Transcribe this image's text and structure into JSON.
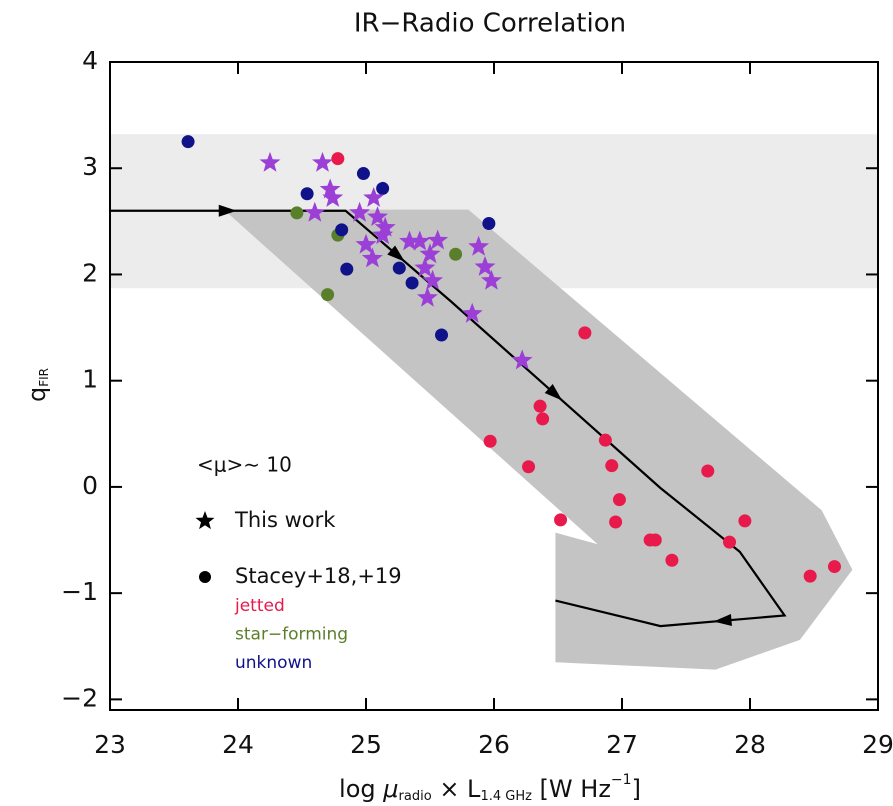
{
  "chart_data": {
    "type": "scatter",
    "title": "IR−Radio Correlation",
    "xlabel": [
      "log ",
      "μ",
      "radio",
      " × L",
      "1.4 GHz",
      " [W Hz",
      "−1",
      "]"
    ],
    "ylabel": [
      "q",
      "FIR"
    ],
    "xlim": [
      23,
      29
    ],
    "ylim": [
      -2.1,
      4
    ],
    "xticks": [
      23,
      24,
      25,
      26,
      27,
      28,
      29
    ],
    "yticks": [
      {
        "value": -2,
        "label": "−2"
      },
      {
        "value": -1,
        "label": "−1"
      },
      0,
      1,
      2,
      3,
      4
    ],
    "shaded_band": {
      "y": [
        1.87,
        3.32
      ],
      "color": "#ececec"
    },
    "track_region": {
      "color": "#c4c4c4",
      "x": [
        23.89,
        25.8,
        28.56,
        28.8,
        28.39,
        27.73,
        26.48,
        26.48,
        26.81
      ],
      "y": [
        2.61,
        2.61,
        -0.22,
        -0.78,
        -1.44,
        -1.72,
        -1.65,
        -0.43,
        -0.54
      ]
    },
    "track": {
      "x": [
        23.0,
        24.84,
        25.66,
        27.3,
        27.92,
        28.27,
        27.3,
        26.48
      ],
      "y": [
        2.6,
        2.6,
        1.75,
        -0.01,
        -0.61,
        -1.21,
        -1.31,
        -1.07
      ]
    },
    "annotations": [
      "<μ>∼ 10",
      "Stacey+18,+19"
    ],
    "series": [
      {
        "name": "This work",
        "color": "#9b3fd6",
        "marker": "star",
        "x": [
          24.25,
          24.66,
          24.72,
          24.74,
          24.6,
          24.95,
          25.06,
          25.09,
          25.15,
          25.13,
          25.0,
          25.05,
          25.34,
          25.42,
          25.5,
          25.56,
          25.46,
          25.52,
          25.48,
          25.83,
          25.88,
          25.93,
          25.98,
          26.22
        ],
        "values": [
          3.05,
          3.05,
          2.8,
          2.72,
          2.58,
          2.58,
          2.72,
          2.54,
          2.44,
          2.37,
          2.28,
          2.15,
          2.31,
          2.31,
          2.19,
          2.32,
          2.06,
          1.94,
          1.78,
          1.63,
          2.26,
          2.07,
          1.94,
          1.19
        ]
      },
      {
        "name": "jetted",
        "color": "#e8194b",
        "marker": "circle",
        "x": [
          24.78,
          26.71,
          25.97,
          26.27,
          26.36,
          26.38,
          26.87,
          26.92,
          26.98,
          26.95,
          26.52,
          27.22,
          27.26,
          27.39,
          27.67,
          27.84,
          27.96,
          28.47,
          28.66
        ],
        "values": [
          3.09,
          1.45,
          0.43,
          0.19,
          0.76,
          0.64,
          0.44,
          0.2,
          -0.12,
          -0.33,
          -0.31,
          -0.5,
          -0.5,
          -0.69,
          0.15,
          -0.52,
          -0.32,
          -0.84,
          -0.75
        ]
      },
      {
        "name": "star−forming",
        "color": "#5a7f2a",
        "marker": "circle",
        "x": [
          24.46,
          24.78,
          24.7,
          25.7
        ],
        "values": [
          2.58,
          2.37,
          1.81,
          2.19
        ]
      },
      {
        "name": "unknown",
        "color": "#10128a",
        "marker": "circle",
        "x": [
          23.61,
          24.54,
          24.98,
          25.13,
          24.81,
          24.85,
          25.26,
          25.36,
          25.96,
          25.59
        ],
        "values": [
          3.25,
          2.76,
          2.95,
          2.81,
          2.42,
          2.05,
          2.06,
          1.92,
          2.48,
          1.43
        ]
      }
    ]
  }
}
